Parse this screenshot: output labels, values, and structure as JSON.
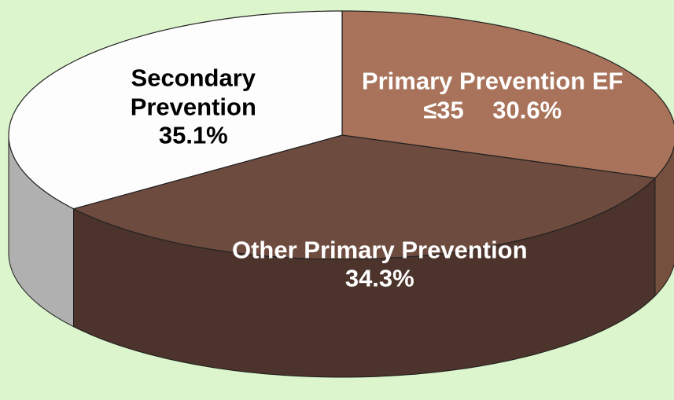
{
  "chart_data": {
    "type": "pie",
    "categories": [
      "Primary Prevention EF ≤35",
      "Other Primary Prevention",
      "Secondary Prevention"
    ],
    "values": [
      30.6,
      34.3,
      35.1
    ],
    "value_labels": [
      "30.6%",
      "34.3%",
      "35.1%"
    ],
    "colors": [
      "#a8735a",
      "#6e4b3f",
      "#fdfdfd"
    ],
    "style": "3d"
  }
}
